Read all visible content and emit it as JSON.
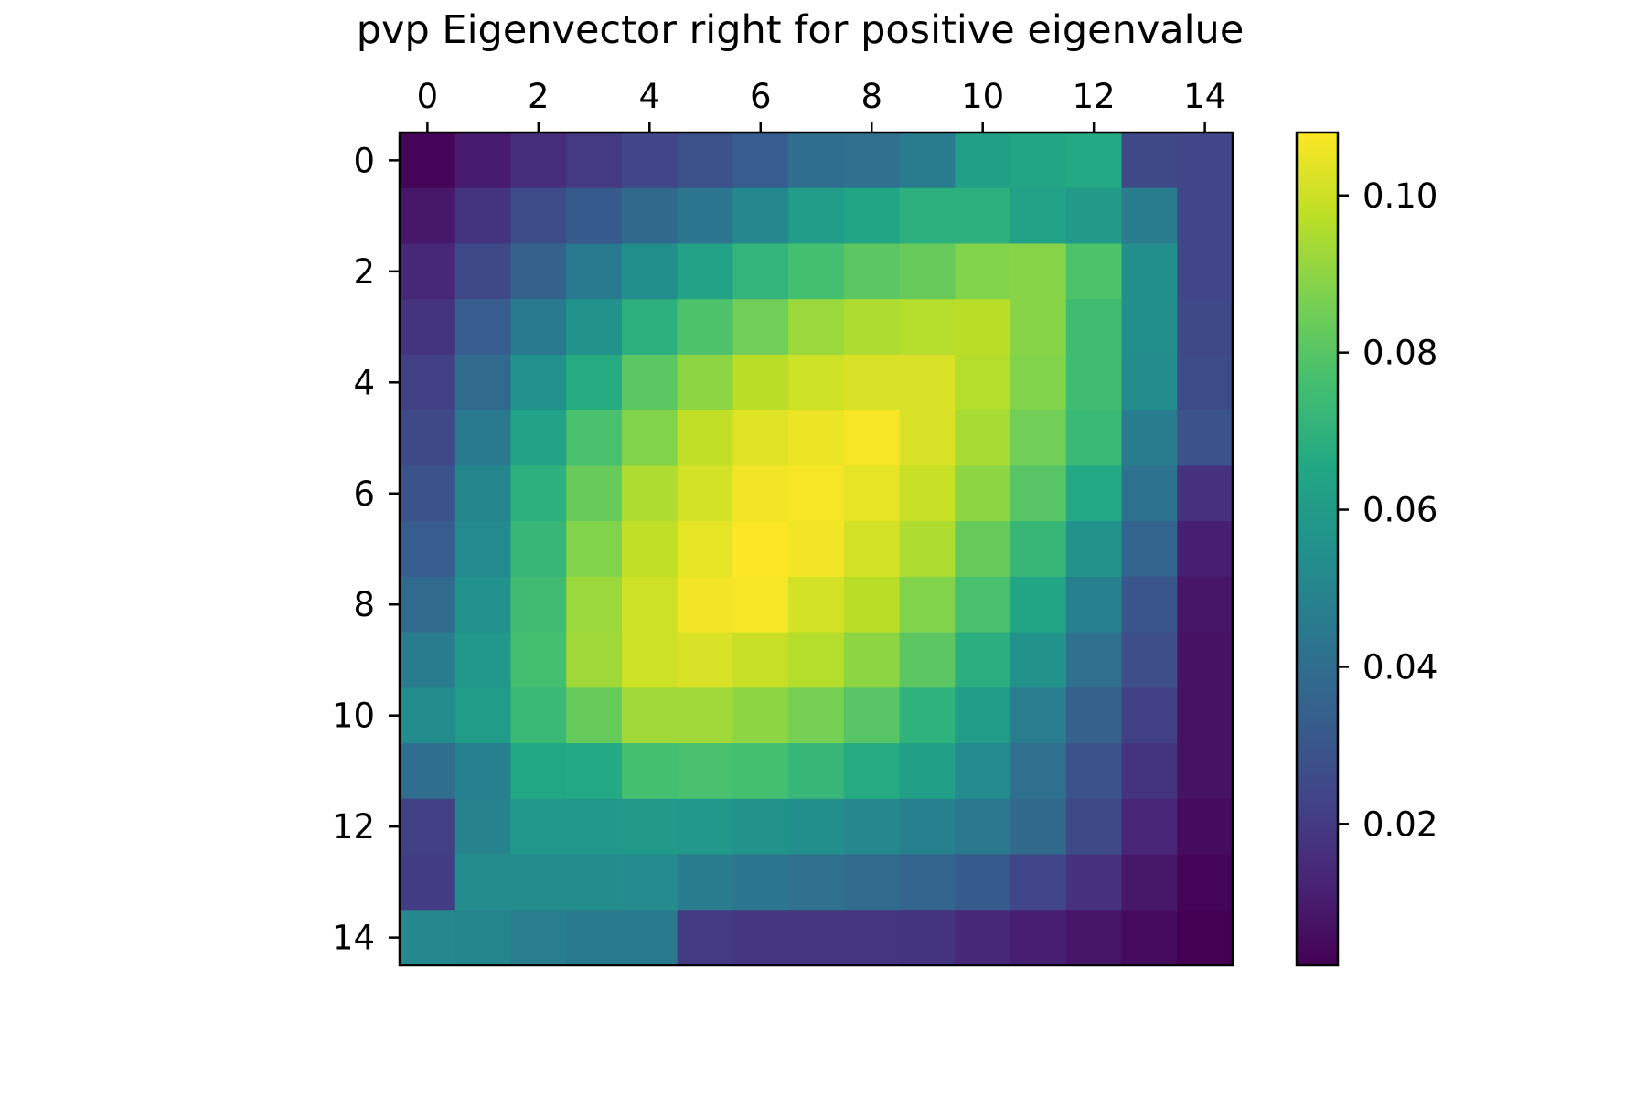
{
  "chart_data": {
    "type": "heatmap",
    "title": "pvp Eigenvector right for positive eigenvalue",
    "xlabel": "",
    "ylabel": "",
    "x_ticks": [
      "0",
      "2",
      "4",
      "6",
      "8",
      "10",
      "12",
      "14"
    ],
    "y_ticks": [
      "0",
      "2",
      "4",
      "6",
      "8",
      "10",
      "12",
      "14"
    ],
    "xlim": [
      -0.5,
      14.5
    ],
    "ylim": [
      14.5,
      -0.5
    ],
    "x_axis_position": "top",
    "grid": false,
    "colormap": "viridis",
    "colorbar": {
      "position": "right",
      "range": [
        0.002,
        0.108
      ],
      "ticks": [
        "0.02",
        "0.04",
        "0.06",
        "0.08",
        "0.10"
      ],
      "tick_values": [
        0.02,
        0.04,
        0.06,
        0.08,
        0.1
      ]
    },
    "values": [
      [
        0.003,
        0.01,
        0.016,
        0.02,
        0.024,
        0.028,
        0.033,
        0.04,
        0.041,
        0.046,
        0.062,
        0.064,
        0.066,
        0.025,
        0.024
      ],
      [
        0.009,
        0.018,
        0.026,
        0.032,
        0.038,
        0.043,
        0.051,
        0.06,
        0.064,
        0.069,
        0.069,
        0.063,
        0.059,
        0.046,
        0.024
      ],
      [
        0.014,
        0.025,
        0.035,
        0.045,
        0.054,
        0.063,
        0.071,
        0.076,
        0.081,
        0.083,
        0.088,
        0.089,
        0.078,
        0.054,
        0.024
      ],
      [
        0.018,
        0.033,
        0.045,
        0.056,
        0.069,
        0.078,
        0.085,
        0.092,
        0.095,
        0.096,
        0.097,
        0.089,
        0.075,
        0.054,
        0.025
      ],
      [
        0.022,
        0.039,
        0.055,
        0.067,
        0.081,
        0.09,
        0.097,
        0.1,
        0.102,
        0.102,
        0.096,
        0.088,
        0.075,
        0.053,
        0.026
      ],
      [
        0.025,
        0.045,
        0.063,
        0.077,
        0.088,
        0.098,
        0.103,
        0.105,
        0.107,
        0.102,
        0.094,
        0.085,
        0.073,
        0.046,
        0.029
      ],
      [
        0.029,
        0.05,
        0.069,
        0.083,
        0.095,
        0.101,
        0.106,
        0.107,
        0.104,
        0.099,
        0.09,
        0.08,
        0.066,
        0.042,
        0.017
      ],
      [
        0.033,
        0.052,
        0.072,
        0.088,
        0.098,
        0.104,
        0.108,
        0.106,
        0.101,
        0.095,
        0.083,
        0.072,
        0.056,
        0.036,
        0.011
      ],
      [
        0.039,
        0.055,
        0.075,
        0.092,
        0.1,
        0.106,
        0.107,
        0.101,
        0.097,
        0.088,
        0.077,
        0.064,
        0.048,
        0.03,
        0.008
      ],
      [
        0.046,
        0.058,
        0.076,
        0.093,
        0.1,
        0.102,
        0.099,
        0.096,
        0.09,
        0.081,
        0.068,
        0.056,
        0.041,
        0.027,
        0.007
      ],
      [
        0.053,
        0.06,
        0.073,
        0.083,
        0.093,
        0.093,
        0.09,
        0.086,
        0.08,
        0.07,
        0.06,
        0.047,
        0.035,
        0.022,
        0.007
      ],
      [
        0.04,
        0.048,
        0.065,
        0.066,
        0.076,
        0.077,
        0.076,
        0.072,
        0.067,
        0.062,
        0.052,
        0.041,
        0.029,
        0.018,
        0.007
      ],
      [
        0.022,
        0.049,
        0.058,
        0.058,
        0.059,
        0.058,
        0.056,
        0.054,
        0.051,
        0.048,
        0.044,
        0.038,
        0.025,
        0.013,
        0.005
      ],
      [
        0.021,
        0.053,
        0.053,
        0.053,
        0.052,
        0.046,
        0.043,
        0.041,
        0.039,
        0.036,
        0.032,
        0.024,
        0.017,
        0.009,
        0.003
      ],
      [
        0.051,
        0.05,
        0.047,
        0.045,
        0.045,
        0.02,
        0.019,
        0.019,
        0.019,
        0.018,
        0.014,
        0.011,
        0.008,
        0.005,
        0.002
      ]
    ]
  }
}
